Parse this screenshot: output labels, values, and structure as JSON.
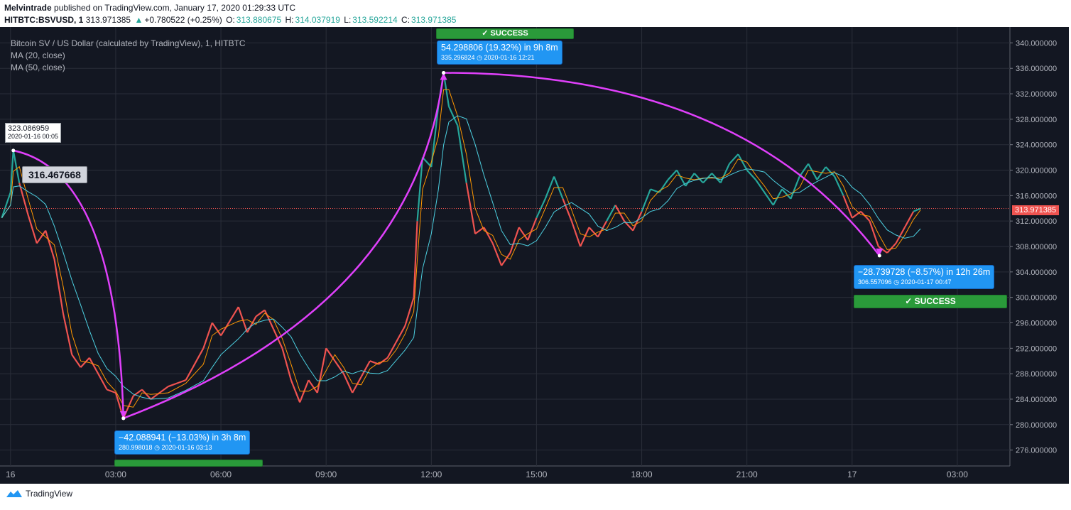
{
  "header": {
    "publisher": "Melvintrade",
    "published_line": " published on TradingView.com, January 17, 2020 01:29:33 UTC",
    "symbol_line": "HITBTC:BSVUSD, 1",
    "last_price": "313.971385",
    "change_arrow": "▲",
    "change": "+0.780522 (+0.25%)",
    "o_label": "O:",
    "o_value": "313.880675",
    "h_label": "H:",
    "h_value": "314.037919",
    "l_label": "L:",
    "l_value": "313.592214",
    "c_label": "C:",
    "c_value": "313.971385"
  },
  "legend": {
    "title": "Bitcoin SV / US Dollar (calculated by TradingView), 1, HITBTC",
    "ma20": "MA (20, close)",
    "ma50": "MA (50, close)"
  },
  "footer": {
    "brand": "TradingView",
    "logo_icon": "tradingview-logo-icon"
  },
  "colors": {
    "background": "#131722",
    "grid": "#2a2e39",
    "up": "#26a69a",
    "down": "#ef5350",
    "ma20": "#ff9800",
    "ma50": "#4dd0e1",
    "arrow": "#e040fb",
    "info": "#2196f3",
    "success": "#2a9a3a"
  },
  "annotations": {
    "start_price": "323.086959",
    "start_time": "2020-01-16 00:05",
    "price_label": "316.467668",
    "drop1_text": "−42.088941 (−13.03%) in 3h 8m",
    "drop1_sub_price": "280.998018",
    "drop1_sub_time": "2020-01-16  03:13",
    "rise_text": "54.298806 (19.32%) in 9h 8m",
    "rise_sub_price": "335.296824",
    "rise_sub_time": "2020-01-16  12:21",
    "drop2_text": "−28.739728 (−8.57%) in 12h 26m",
    "drop2_sub_price": "306.557096",
    "drop2_sub_time": "2020-01-17  00:47",
    "success_label": "✓ SUCCESS",
    "last_price_label": "313.971385"
  },
  "chart_data": {
    "type": "line",
    "title": "Bitcoin SV / US Dollar (calculated by TradingView), 1, HITBTC",
    "xlabel": "",
    "ylabel": "",
    "x_tick_labels": [
      "16",
      "03:00",
      "06:00",
      "09:00",
      "12:00",
      "15:00",
      "18:00",
      "21:00",
      "17",
      "03:00"
    ],
    "y_tick_labels": [
      "340.000000",
      "336.000000",
      "332.000000",
      "328.000000",
      "324.000000",
      "320.000000",
      "316.000000",
      "312.000000",
      "308.000000",
      "304.000000",
      "300.000000",
      "296.000000",
      "292.000000",
      "288.000000",
      "284.000000",
      "280.000000",
      "276.000000"
    ],
    "ylim": [
      273.5,
      342.5
    ],
    "xlim_hours": [
      -0.3,
      28.5
    ],
    "grid": true,
    "series": [
      {
        "name": "Bitcoin SV / US Dollar",
        "points": [
          [
            -0.25,
            312.5
          ],
          [
            0.0,
            316.5
          ],
          [
            0.08,
            323.1
          ],
          [
            0.25,
            318.0
          ],
          [
            0.5,
            313.0
          ],
          [
            0.75,
            308.5
          ],
          [
            1.0,
            310.5
          ],
          [
            1.25,
            306.0
          ],
          [
            1.5,
            297.5
          ],
          [
            1.75,
            291.0
          ],
          [
            2.0,
            289.0
          ],
          [
            2.25,
            290.5
          ],
          [
            2.5,
            288.0
          ],
          [
            2.75,
            285.5
          ],
          [
            3.0,
            285.0
          ],
          [
            3.22,
            281.0
          ],
          [
            3.5,
            284.5
          ],
          [
            3.75,
            285.5
          ],
          [
            4.0,
            284.0
          ],
          [
            4.5,
            286.0
          ],
          [
            5.0,
            287.0
          ],
          [
            5.5,
            292.0
          ],
          [
            5.75,
            296.0
          ],
          [
            6.0,
            294.0
          ],
          [
            6.5,
            298.5
          ],
          [
            6.75,
            294.5
          ],
          [
            7.0,
            297.0
          ],
          [
            7.25,
            298.0
          ],
          [
            7.5,
            295.0
          ],
          [
            7.75,
            292.0
          ],
          [
            8.0,
            287.0
          ],
          [
            8.25,
            283.5
          ],
          [
            8.5,
            287.0
          ],
          [
            8.75,
            285.0
          ],
          [
            9.0,
            292.0
          ],
          [
            9.25,
            290.0
          ],
          [
            9.5,
            288.0
          ],
          [
            9.75,
            285.0
          ],
          [
            10.0,
            287.5
          ],
          [
            10.25,
            290.0
          ],
          [
            10.5,
            289.5
          ],
          [
            10.75,
            290.5
          ],
          [
            11.0,
            293.0
          ],
          [
            11.25,
            295.5
          ],
          [
            11.5,
            300.0
          ],
          [
            11.6,
            312.0
          ],
          [
            11.75,
            322.0
          ],
          [
            12.0,
            320.5
          ],
          [
            12.2,
            330.0
          ],
          [
            12.35,
            335.3
          ],
          [
            12.5,
            330.0
          ],
          [
            12.75,
            327.0
          ],
          [
            13.0,
            318.0
          ],
          [
            13.25,
            310.0
          ],
          [
            13.5,
            311.0
          ],
          [
            13.75,
            308.5
          ],
          [
            14.0,
            305.0
          ],
          [
            14.25,
            307.0
          ],
          [
            14.5,
            311.0
          ],
          [
            14.75,
            309.0
          ],
          [
            15.0,
            312.5
          ],
          [
            15.25,
            315.5
          ],
          [
            15.5,
            319.0
          ],
          [
            15.75,
            315.5
          ],
          [
            16.0,
            312.0
          ],
          [
            16.25,
            308.0
          ],
          [
            16.5,
            311.0
          ],
          [
            16.75,
            309.5
          ],
          [
            17.0,
            312.0
          ],
          [
            17.25,
            314.5
          ],
          [
            17.5,
            312.0
          ],
          [
            17.75,
            310.5
          ],
          [
            18.0,
            313.5
          ],
          [
            18.25,
            317.0
          ],
          [
            18.5,
            316.5
          ],
          [
            18.75,
            318.5
          ],
          [
            19.0,
            320.0
          ],
          [
            19.25,
            317.5
          ],
          [
            19.5,
            319.5
          ],
          [
            19.75,
            318.0
          ],
          [
            20.0,
            319.5
          ],
          [
            20.25,
            318.0
          ],
          [
            20.5,
            321.0
          ],
          [
            20.75,
            322.5
          ],
          [
            21.0,
            320.0
          ],
          [
            21.25,
            318.5
          ],
          [
            21.5,
            316.5
          ],
          [
            21.75,
            314.5
          ],
          [
            22.0,
            317.0
          ],
          [
            22.25,
            315.5
          ],
          [
            22.5,
            319.0
          ],
          [
            22.75,
            321.0
          ],
          [
            23.0,
            318.5
          ],
          [
            23.25,
            320.5
          ],
          [
            23.5,
            319.0
          ],
          [
            23.75,
            316.0
          ],
          [
            24.0,
            312.5
          ],
          [
            24.25,
            313.5
          ],
          [
            24.5,
            312.0
          ],
          [
            24.75,
            308.0
          ],
          [
            25.0,
            307.0
          ],
          [
            25.25,
            308.5
          ],
          [
            25.5,
            311.0
          ],
          [
            25.75,
            313.5
          ],
          [
            25.95,
            313.97
          ]
        ]
      }
    ],
    "moving_averages": [
      {
        "name": "MA (20, close)",
        "window": 20
      },
      {
        "name": "MA (50, close)",
        "window": 50
      }
    ],
    "last_price": 313.971385,
    "measures": [
      {
        "from": [
          0.08,
          323.086959
        ],
        "to": [
          3.22,
          280.998018
        ],
        "change": -42.088941,
        "percent": -13.03,
        "duration": "3h 8m"
      },
      {
        "from": [
          3.22,
          280.998018
        ],
        "to": [
          12.35,
          335.296824
        ],
        "change": 54.298806,
        "percent": 19.32,
        "duration": "9h 8m"
      },
      {
        "from": [
          12.35,
          335.296824
        ],
        "to": [
          24.78,
          306.557096
        ],
        "change": -28.739728,
        "percent": -8.57,
        "duration": "12h 26m"
      }
    ]
  }
}
